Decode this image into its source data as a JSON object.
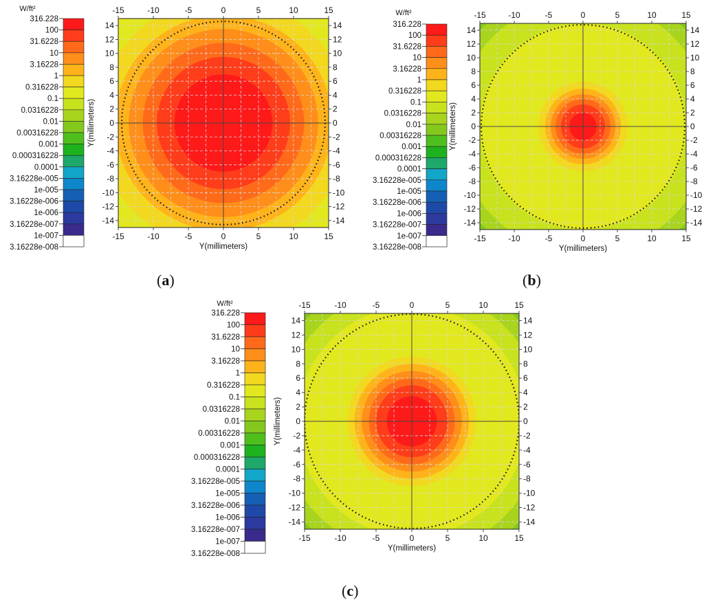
{
  "legend_unit": "W/ft²",
  "legend_levels": [
    "316.228",
    "100",
    "31.6228",
    "10",
    "3.16228",
    "1",
    "0.316228",
    "0.1",
    "0.0316228",
    "0.01",
    "0.00316228",
    "0.001",
    "0.000316228",
    "0.0001",
    "3.16228e-005",
    "1e-005",
    "3.16228e-006",
    "1e-006",
    "3.16228e-007",
    "1e-007",
    "3.16228e-008"
  ],
  "legend_colors": [
    "#ff1a1a",
    "#ff3d1a",
    "#ff6a1a",
    "#ff8e1a",
    "#ffb31a",
    "#f2d81e",
    "#e2e81e",
    "#c8e21e",
    "#a8d41e",
    "#84c81e",
    "#4fbf1e",
    "#1eb31e",
    "#1ea86a",
    "#12a6c8",
    "#0e86cc",
    "#1560b4",
    "#1f49a8",
    "#2c3aa0",
    "#3a2a8c",
    "#382a48",
    "#ffffff"
  ],
  "chart_data": [
    {
      "type": "heatmap",
      "panel": "(a)",
      "xlabel": "Y(millimeters)",
      "ylabel": "Y(millimeters)",
      "xlim": [
        -15,
        15
      ],
      "ylim": [
        -15,
        15
      ],
      "x_ticks": [
        -15,
        -10,
        -5,
        0,
        5,
        10,
        15
      ],
      "y_ticks": [
        14,
        12,
        10,
        8,
        6,
        4,
        2,
        0,
        -2,
        -4,
        -6,
        -8,
        -10,
        -12,
        -14
      ],
      "grid": true,
      "dotted_circle_radius": 14.5,
      "contours": [
        {
          "level": "0.316228",
          "radius": 21.5
        },
        {
          "level": "1",
          "radius": 18
        },
        {
          "level": "3.16228",
          "radius": 15.5
        },
        {
          "level": "10",
          "radius": 13.5
        },
        {
          "level": "31.6228",
          "radius": 11.5
        },
        {
          "level": "100",
          "radius": 9.5
        },
        {
          "level": "316.228",
          "radius": 7
        }
      ]
    },
    {
      "type": "heatmap",
      "panel": "(b)",
      "xlabel": "Y(millimeters)",
      "ylabel": "Y(millimeters)",
      "xlim": [
        -15,
        15
      ],
      "ylim": [
        -15,
        15
      ],
      "x_ticks": [
        -15,
        -10,
        -5,
        0,
        5,
        10,
        15
      ],
      "y_ticks": [
        14,
        12,
        10,
        8,
        6,
        4,
        2,
        0,
        -2,
        -4,
        -6,
        -8,
        -10,
        -12,
        -14
      ],
      "grid": true,
      "dotted_circle_radius": 14.8,
      "contours": [
        {
          "level": "0.01",
          "radius": 22
        },
        {
          "level": "0.0316228",
          "radius": 20.5
        },
        {
          "level": "0.1",
          "radius": 18.5
        },
        {
          "level": "0.316228",
          "radius": 15
        },
        {
          "level": "1",
          "radius": 6.5
        },
        {
          "level": "3.16228",
          "radius": 5.5
        },
        {
          "level": "10",
          "radius": 4.7
        },
        {
          "level": "31.6228",
          "radius": 4
        },
        {
          "level": "100",
          "radius": 3.2
        },
        {
          "level": "316.228",
          "radius": 2
        }
      ]
    },
    {
      "type": "heatmap",
      "panel": "(c)",
      "xlabel": "Y(millimeters)",
      "ylabel": "Y(millimeters)",
      "xlim": [
        -15,
        15
      ],
      "ylim": [
        -15,
        15
      ],
      "x_ticks": [
        -15,
        -10,
        -5,
        0,
        5,
        10,
        15
      ],
      "y_ticks": [
        14,
        12,
        10,
        8,
        6,
        4,
        2,
        0,
        -2,
        -4,
        -6,
        -8,
        -10,
        -12,
        -14
      ],
      "grid": true,
      "dotted_circle_radius": 15,
      "contours": [
        {
          "level": "0.01",
          "radius": 22
        },
        {
          "level": "0.0316228",
          "radius": 20.5
        },
        {
          "level": "0.1",
          "radius": 18.5
        },
        {
          "level": "0.316228",
          "radius": 16
        },
        {
          "level": "1",
          "radius": 9
        },
        {
          "level": "3.16228",
          "radius": 8
        },
        {
          "level": "10",
          "radius": 7
        },
        {
          "level": "31.6228",
          "radius": 6
        },
        {
          "level": "100",
          "radius": 5
        },
        {
          "level": "316.228",
          "radius": 3.5
        }
      ]
    }
  ]
}
